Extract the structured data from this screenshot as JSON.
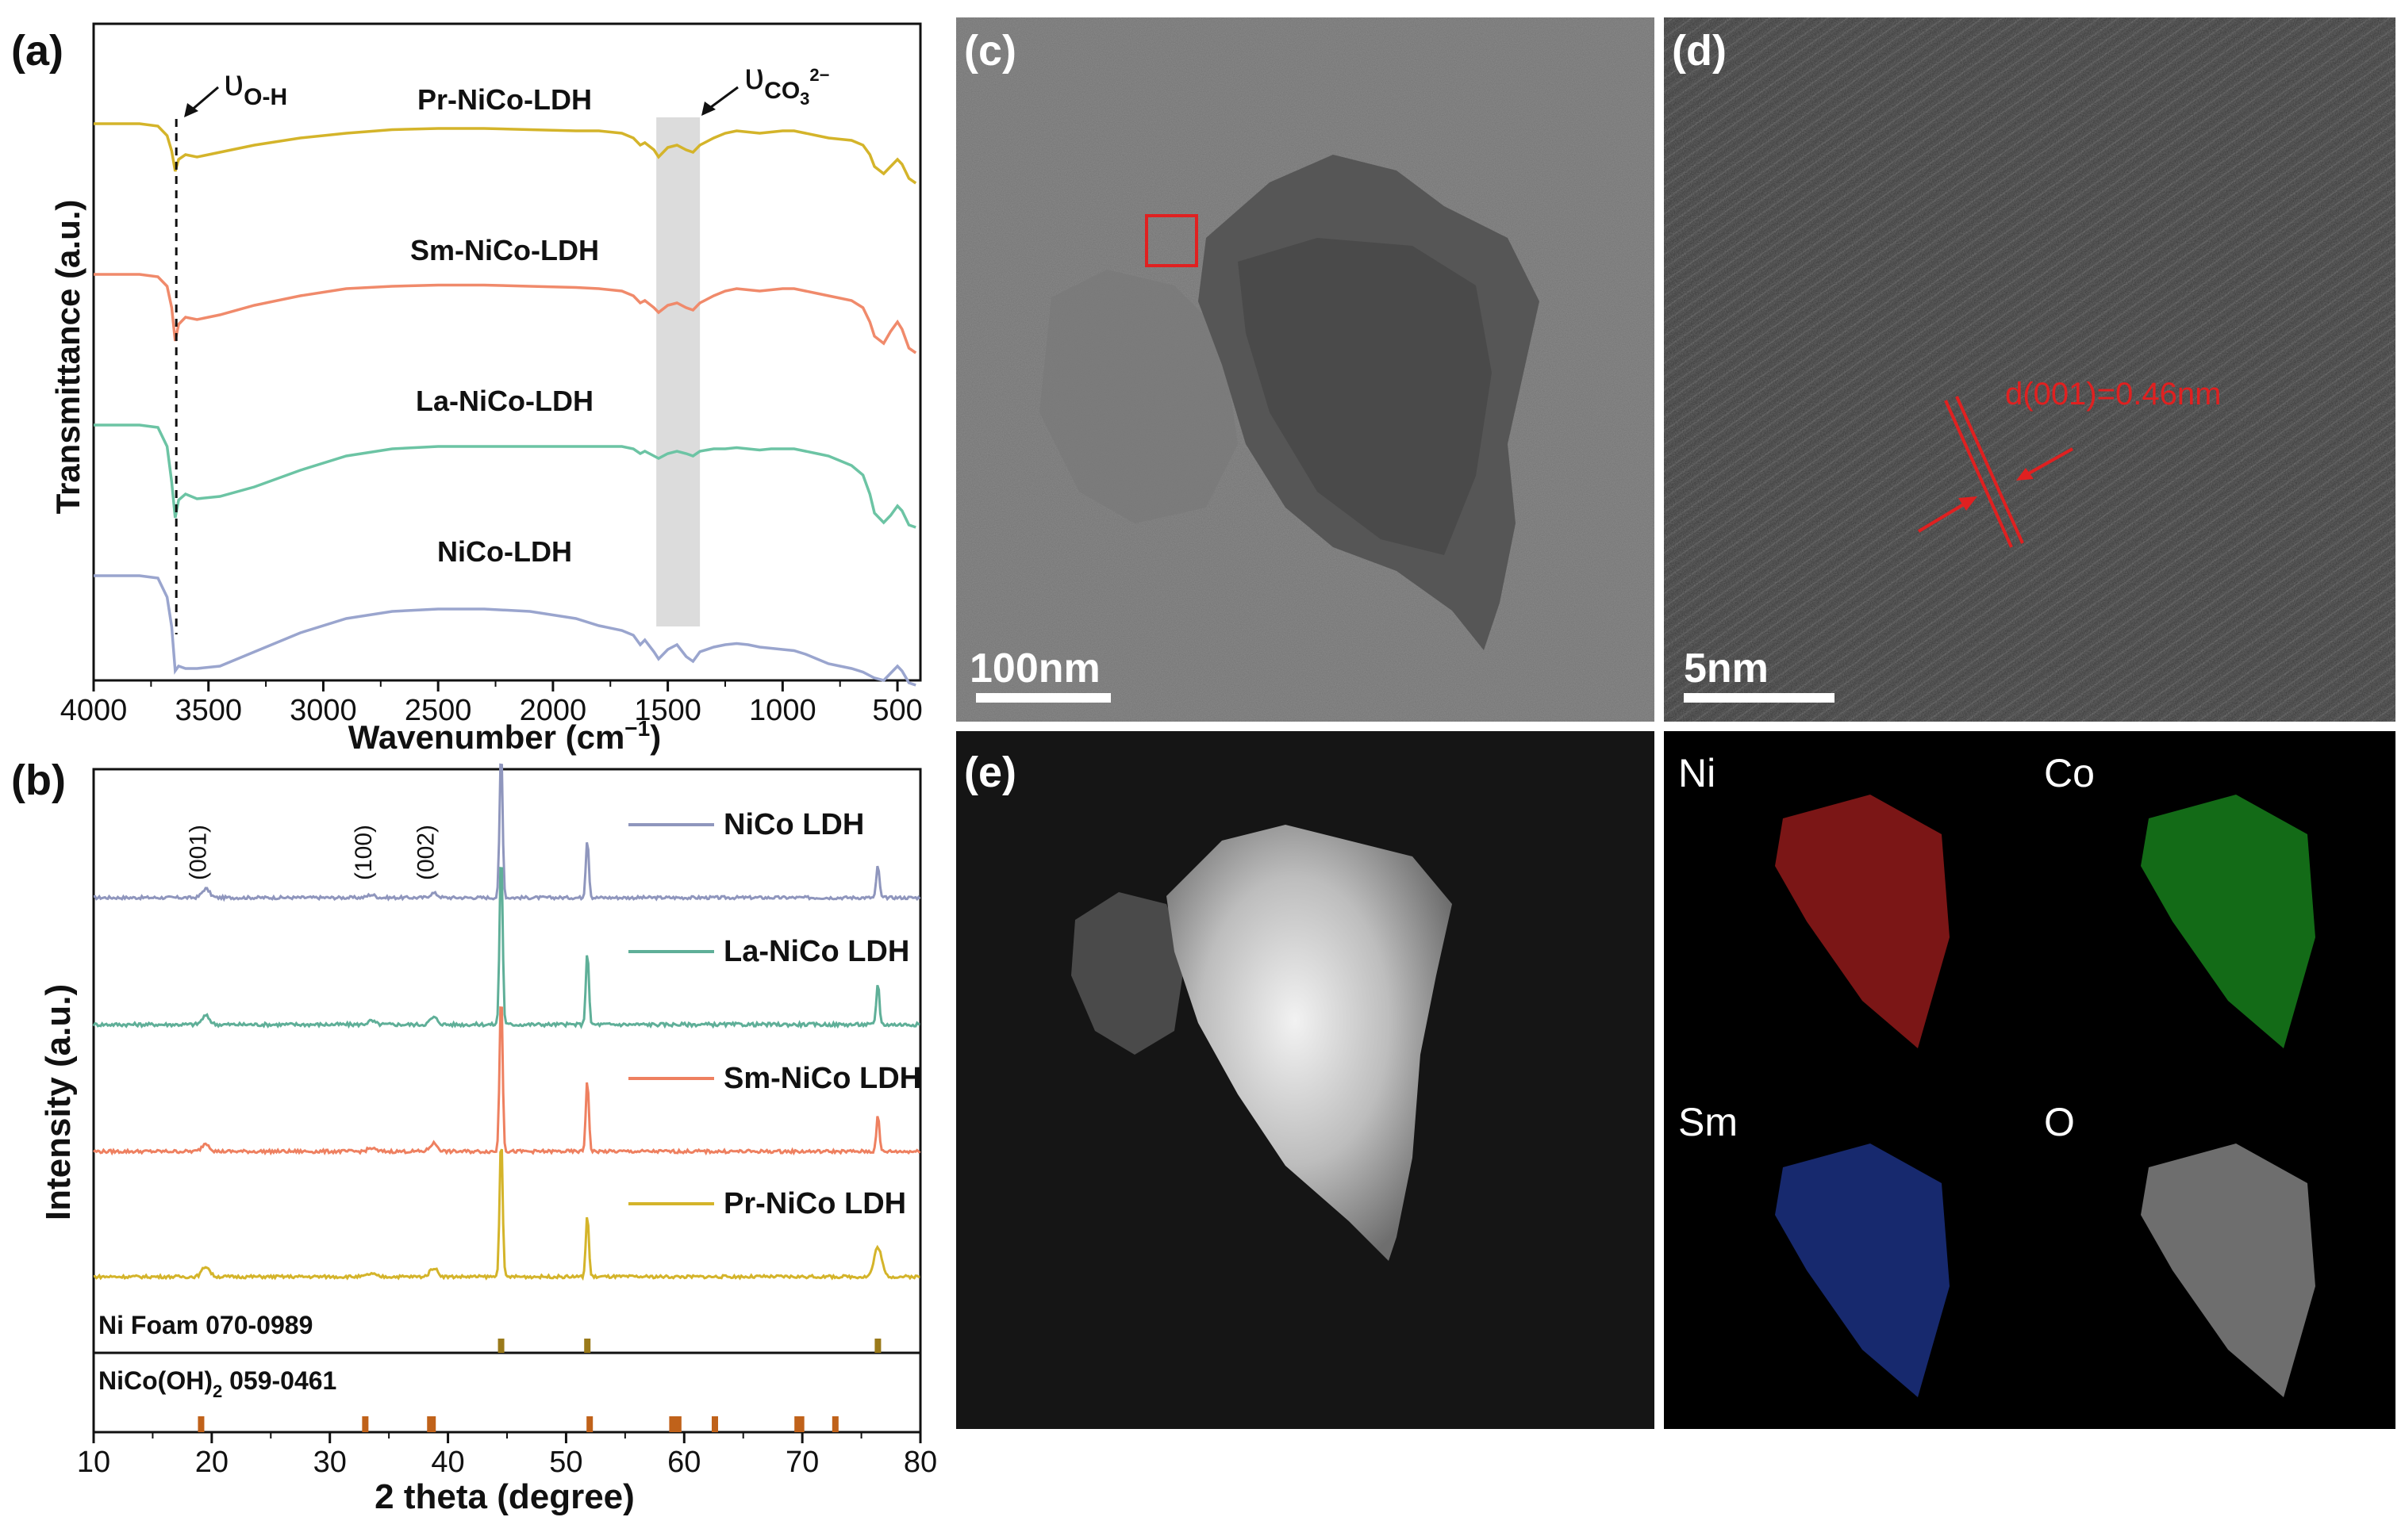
{
  "panels": {
    "a": "(a)",
    "b": "(b)",
    "c": "(c)",
    "d": "(d)",
    "e": "(e)"
  },
  "chart_data": [
    {
      "id": "ftir",
      "type": "line",
      "xlabel": "Wavenumber (cm",
      "xlabel_sup": "−1",
      "xlabel_close": ")",
      "ylabel": "Transmittance (a.u.)",
      "xlim": [
        4000,
        400
      ],
      "xticks": [
        4000,
        3500,
        3000,
        2500,
        2000,
        1500,
        1000,
        500
      ],
      "xtick_labels": [
        "4000",
        "3500",
        "3000",
        "2500",
        "2000",
        "1500",
        "1000",
        "500"
      ],
      "annotations": {
        "oh_symbol": "υ",
        "oh_sub": "O-H",
        "co3_symbol": "υ",
        "co3_sub": "CO",
        "co3_sub2": "3",
        "co3_sup": "2−",
        "oh_position": 3640,
        "co3_band": [
          1550,
          1360
        ]
      },
      "series": [
        {
          "name": "Pr-NiCo-LDH",
          "color": "#D4B42A",
          "offset": 3,
          "x": [
            4000,
            3800,
            3720,
            3680,
            3660,
            3645,
            3630,
            3600,
            3550,
            3450,
            3300,
            3100,
            2900,
            2700,
            2500,
            2300,
            2100,
            1900,
            1800,
            1700,
            1650,
            1620,
            1600,
            1560,
            1540,
            1500,
            1460,
            1420,
            1390,
            1360,
            1300,
            1250,
            1200,
            1150,
            1100,
            1050,
            1000,
            950,
            900,
            850,
            800,
            750,
            700,
            650,
            620,
            600,
            560,
            530,
            500,
            480,
            450,
            420
          ],
          "y": [
            0.98,
            0.98,
            0.96,
            0.88,
            0.75,
            0.58,
            0.68,
            0.72,
            0.7,
            0.74,
            0.8,
            0.86,
            0.9,
            0.93,
            0.94,
            0.94,
            0.93,
            0.92,
            0.92,
            0.9,
            0.86,
            0.8,
            0.82,
            0.76,
            0.7,
            0.78,
            0.8,
            0.76,
            0.74,
            0.8,
            0.86,
            0.9,
            0.92,
            0.91,
            0.9,
            0.91,
            0.92,
            0.92,
            0.9,
            0.88,
            0.86,
            0.85,
            0.84,
            0.8,
            0.72,
            0.62,
            0.56,
            0.62,
            0.68,
            0.64,
            0.52,
            0.48
          ]
        },
        {
          "name": "Sm-NiCo-LDH",
          "color": "#F08A6B",
          "offset": 2,
          "x": [
            4000,
            3800,
            3720,
            3680,
            3660,
            3645,
            3630,
            3600,
            3550,
            3450,
            3300,
            3100,
            2900,
            2700,
            2500,
            2300,
            2100,
            1900,
            1800,
            1700,
            1650,
            1620,
            1600,
            1560,
            1540,
            1500,
            1460,
            1420,
            1390,
            1360,
            1300,
            1250,
            1200,
            1150,
            1100,
            1050,
            1000,
            950,
            900,
            850,
            800,
            750,
            700,
            650,
            620,
            600,
            560,
            530,
            500,
            480,
            450,
            420
          ],
          "y": [
            0.98,
            0.98,
            0.96,
            0.88,
            0.7,
            0.42,
            0.56,
            0.62,
            0.6,
            0.64,
            0.72,
            0.8,
            0.86,
            0.88,
            0.89,
            0.89,
            0.88,
            0.87,
            0.86,
            0.84,
            0.8,
            0.74,
            0.76,
            0.7,
            0.66,
            0.72,
            0.74,
            0.7,
            0.68,
            0.74,
            0.8,
            0.84,
            0.86,
            0.85,
            0.84,
            0.85,
            0.86,
            0.86,
            0.84,
            0.82,
            0.8,
            0.78,
            0.76,
            0.7,
            0.58,
            0.46,
            0.4,
            0.5,
            0.58,
            0.52,
            0.36,
            0.32
          ]
        },
        {
          "name": "La-NiCo-LDH",
          "color": "#6CC4A4",
          "offset": 1,
          "x": [
            4000,
            3800,
            3720,
            3680,
            3660,
            3645,
            3630,
            3600,
            3550,
            3450,
            3300,
            3100,
            2900,
            2700,
            2500,
            2300,
            2100,
            1900,
            1800,
            1700,
            1650,
            1620,
            1600,
            1560,
            1540,
            1500,
            1460,
            1420,
            1390,
            1360,
            1300,
            1250,
            1200,
            1150,
            1100,
            1050,
            1000,
            950,
            900,
            850,
            800,
            750,
            700,
            650,
            620,
            600,
            560,
            530,
            500,
            480,
            450,
            420
          ],
          "y": [
            0.98,
            0.98,
            0.96,
            0.8,
            0.5,
            0.2,
            0.35,
            0.4,
            0.36,
            0.38,
            0.46,
            0.6,
            0.72,
            0.78,
            0.8,
            0.8,
            0.8,
            0.8,
            0.8,
            0.8,
            0.78,
            0.74,
            0.76,
            0.72,
            0.7,
            0.74,
            0.76,
            0.74,
            0.72,
            0.76,
            0.78,
            0.78,
            0.79,
            0.78,
            0.77,
            0.78,
            0.78,
            0.78,
            0.76,
            0.74,
            0.72,
            0.68,
            0.64,
            0.56,
            0.4,
            0.24,
            0.16,
            0.22,
            0.3,
            0.26,
            0.14,
            0.12
          ]
        },
        {
          "name": "NiCo-LDH",
          "color": "#9AA5CE",
          "offset": 0,
          "x": [
            4000,
            3800,
            3720,
            3680,
            3660,
            3645,
            3630,
            3600,
            3550,
            3450,
            3300,
            3100,
            2900,
            2700,
            2500,
            2300,
            2100,
            1900,
            1800,
            1700,
            1650,
            1620,
            1600,
            1560,
            1540,
            1500,
            1460,
            1420,
            1390,
            1360,
            1300,
            1250,
            1200,
            1150,
            1100,
            1050,
            1000,
            950,
            900,
            850,
            800,
            750,
            700,
            650,
            620,
            600,
            560,
            530,
            500,
            480,
            450,
            420
          ],
          "y": [
            0.98,
            0.98,
            0.96,
            0.8,
            0.55,
            0.18,
            0.22,
            0.2,
            0.2,
            0.22,
            0.34,
            0.5,
            0.62,
            0.68,
            0.7,
            0.7,
            0.68,
            0.62,
            0.56,
            0.52,
            0.48,
            0.4,
            0.44,
            0.34,
            0.28,
            0.36,
            0.4,
            0.3,
            0.26,
            0.34,
            0.38,
            0.4,
            0.41,
            0.4,
            0.38,
            0.37,
            0.36,
            0.35,
            0.32,
            0.28,
            0.24,
            0.22,
            0.2,
            0.17,
            0.14,
            0.12,
            0.1,
            0.16,
            0.22,
            0.18,
            0.08,
            0.06
          ]
        }
      ]
    },
    {
      "id": "xrd",
      "type": "line",
      "xlabel": "2 theta (degree)",
      "ylabel": "Intensity (a.u.)",
      "xlim": [
        10,
        80
      ],
      "xticks": [
        10,
        20,
        30,
        40,
        50,
        60,
        70,
        80
      ],
      "xtick_labels": [
        "10",
        "20",
        "30",
        "40",
        "50",
        "60",
        "70",
        "80"
      ],
      "peak_labels": [
        {
          "text": "(001)",
          "x": 19.5
        },
        {
          "text": "(100)",
          "x": 33.5
        },
        {
          "text": "(002)",
          "x": 38.8
        }
      ],
      "series": [
        {
          "name": "NiCo LDH",
          "color": "#8F96BD",
          "offset": 3,
          "noise_baseline": 0.02,
          "peaks": [
            [
              19.5,
              0.06
            ],
            [
              33.5,
              0.02
            ],
            [
              38.8,
              0.03
            ],
            [
              44.5,
              1.0
            ],
            [
              51.8,
              0.4
            ],
            [
              76.4,
              0.22
            ]
          ]
        },
        {
          "name": "La-NiCo LDH",
          "color": "#5FAF98",
          "offset": 2,
          "noise_baseline": 0.02,
          "peaks": [
            [
              19.5,
              0.05
            ],
            [
              33.5,
              0.02
            ],
            [
              38.8,
              0.04
            ],
            [
              44.5,
              1.0
            ],
            [
              51.8,
              0.42
            ],
            [
              76.4,
              0.24
            ]
          ]
        },
        {
          "name": "Sm-NiCo LDH",
          "color": "#EE8060",
          "offset": 1,
          "noise_baseline": 0.02,
          "peaks": [
            [
              19.5,
              0.05
            ],
            [
              33.5,
              0.02
            ],
            [
              38.8,
              0.05
            ],
            [
              44.5,
              1.0
            ],
            [
              51.8,
              0.45
            ],
            [
              76.4,
              0.22
            ]
          ]
        },
        {
          "name": "Pr-NiCo LDH",
          "color": "#D4B42A",
          "offset": 0,
          "noise_baseline": 0.02,
          "peaks": [
            [
              19.5,
              0.07
            ],
            [
              33.5,
              0.02
            ],
            [
              38.8,
              0.06
            ],
            [
              44.5,
              0.95
            ],
            [
              51.8,
              0.42
            ],
            [
              76.4,
              0.2
            ]
          ]
        }
      ],
      "references": [
        {
          "name": "Ni Foam 070-0989",
          "color": "#9A7A1A",
          "peaks": [
            44.5,
            51.8,
            76.4
          ]
        },
        {
          "name": "NiCo(OH)",
          "name_sub": "2",
          "name_rest": " 059-0461",
          "color": "#C0621A",
          "peaks": [
            19.1,
            33.0,
            38.5,
            38.7,
            52.0,
            59.0,
            59.5,
            62.6,
            69.6,
            69.9,
            72.8
          ]
        }
      ]
    }
  ],
  "micrographs": {
    "c_scale": "100nm",
    "d_scale": "5nm",
    "d_spacing": "d(001)=0.46nm",
    "mapping": [
      {
        "element": "Ni",
        "color": "#E02828"
      },
      {
        "element": "Co",
        "color": "#22C22A"
      },
      {
        "element": "Sm",
        "color": "#2A4AC8"
      },
      {
        "element": "O",
        "color": "#C8C8C8"
      }
    ]
  }
}
